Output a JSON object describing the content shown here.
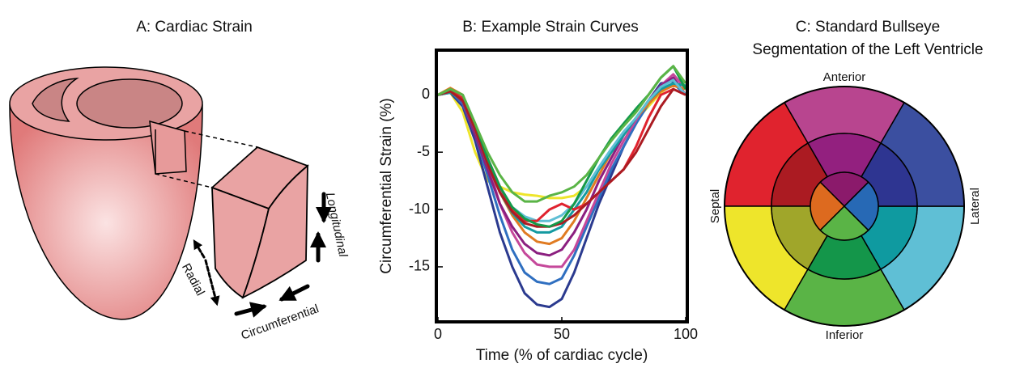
{
  "panel_a": {
    "title": "A: Cardiac Strain",
    "labels": {
      "radial": "Radial",
      "circumferential": "Circumferential",
      "longitudinal": "Longitudinal"
    }
  },
  "chart_data": {
    "type": "line",
    "title": "B: Example Strain Curves",
    "x_label": "Time (% of cardiac cycle)",
    "y_label": "Circumferential Strain (%)",
    "x": [
      0,
      5,
      10,
      15,
      20,
      25,
      30,
      35,
      40,
      45,
      50,
      55,
      60,
      65,
      70,
      75,
      80,
      85,
      90,
      95,
      100
    ],
    "xlim": [
      0,
      100
    ],
    "xticks": [
      0,
      50,
      100
    ],
    "ylim": [
      -19.8,
      3.9
    ],
    "yticks": [
      -15,
      -10,
      -5,
      0
    ],
    "series": [
      {
        "color": "#eee52b",
        "values": [
          0,
          0.2,
          -1.5,
          -5,
          -7.5,
          -8,
          -8.5,
          -8.7,
          -8.8,
          -9,
          -9,
          -8.8,
          -8,
          -6.5,
          -5,
          -3.5,
          -2.2,
          -1,
          0.2,
          1,
          0
        ]
      },
      {
        "color": "#2b3a8f",
        "values": [
          0,
          0.2,
          -1,
          -4,
          -8,
          -12,
          -15,
          -17.3,
          -18.3,
          -18.5,
          -17.8,
          -15.5,
          -12.5,
          -9.5,
          -7,
          -4.5,
          -2.5,
          -0.5,
          1,
          1.2,
          0
        ]
      },
      {
        "color": "#2f6fc0",
        "values": [
          0,
          0.3,
          -0.8,
          -3.5,
          -7,
          -10.5,
          -13.5,
          -15.5,
          -16.3,
          -16.5,
          -16,
          -14,
          -11.5,
          -9,
          -6.5,
          -4.5,
          -2.5,
          -0.8,
          0.5,
          1,
          0
        ]
      },
      {
        "color": "#c5489a",
        "values": [
          0,
          0.4,
          -0.5,
          -3,
          -6,
          -9.5,
          -12,
          -13.8,
          -14.8,
          -15,
          -15,
          -13.5,
          -11,
          -8.5,
          -6,
          -4,
          -2.2,
          -0.5,
          0.8,
          1.8,
          0.5
        ]
      },
      {
        "color": "#8b1f7f",
        "values": [
          0,
          0.3,
          -0.6,
          -3.5,
          -6.5,
          -9.5,
          -11.5,
          -13,
          -13.8,
          -14,
          -13.5,
          -12,
          -10,
          -7.5,
          -5.5,
          -3.5,
          -2,
          -0.5,
          0.8,
          1.5,
          0
        ]
      },
      {
        "color": "#e07b22",
        "values": [
          0,
          0.6,
          0,
          -3,
          -6,
          -8.5,
          -10.5,
          -12,
          -12.8,
          -13,
          -12.5,
          -11,
          -9,
          -7,
          -5,
          -3.3,
          -2,
          -0.8,
          0.3,
          0.8,
          0.5
        ]
      },
      {
        "color": "#149aa0",
        "values": [
          0,
          0.2,
          -0.5,
          -3,
          -6,
          -8.5,
          -10.3,
          -11.5,
          -12,
          -12,
          -11.5,
          -10,
          -8.5,
          -6.5,
          -5,
          -3.5,
          -2,
          -0.5,
          0.5,
          1,
          0.8
        ]
      },
      {
        "color": "#5fbfd5",
        "values": [
          0,
          0.3,
          -0.5,
          -3,
          -6,
          -8.3,
          -9.8,
          -10.6,
          -11,
          -11,
          -10.5,
          -9.5,
          -8,
          -6.3,
          -4.7,
          -3.2,
          -2,
          -0.5,
          0.7,
          1.3,
          0
        ]
      },
      {
        "color": "#e0232e",
        "values": [
          0,
          0.4,
          -0.3,
          -2.5,
          -5.5,
          -8,
          -10,
          -11,
          -11,
          -10,
          -9.5,
          -10,
          -9.5,
          -8.5,
          -7.5,
          -6.5,
          -4.5,
          -2,
          0,
          0.5,
          0
        ]
      },
      {
        "color": "#ab1b22",
        "values": [
          0,
          0.3,
          -0.5,
          -3,
          -6,
          -8.5,
          -10.2,
          -11.2,
          -11.5,
          -11.5,
          -11.2,
          -10.5,
          -9.5,
          -8.5,
          -7.5,
          -6.5,
          -5,
          -3,
          -1,
          0.5,
          0
        ]
      },
      {
        "color": "#149a4a",
        "values": [
          0,
          0.5,
          0,
          -2.5,
          -5.5,
          -8,
          -9.8,
          -10.8,
          -11.3,
          -11.5,
          -11,
          -9.5,
          -7.5,
          -5.5,
          -3.8,
          -2.5,
          -1.2,
          0,
          1.5,
          2.5,
          0.5
        ]
      },
      {
        "color": "#5ab446",
        "values": [
          0,
          0.5,
          0,
          -2.5,
          -5,
          -7,
          -8.5,
          -9.3,
          -9.3,
          -8.8,
          -8.5,
          -8,
          -7,
          -5.5,
          -4,
          -2.7,
          -1.5,
          0,
          1.5,
          2.5,
          1
        ]
      }
    ]
  },
  "panel_c": {
    "title": [
      "C: Standard Bullseye",
      "Segmentation of the Left Ventricle"
    ],
    "labels": {
      "anterior": "Anterior",
      "inferior": "Inferior",
      "septal": "Septal",
      "lateral": "Lateral"
    }
  }
}
